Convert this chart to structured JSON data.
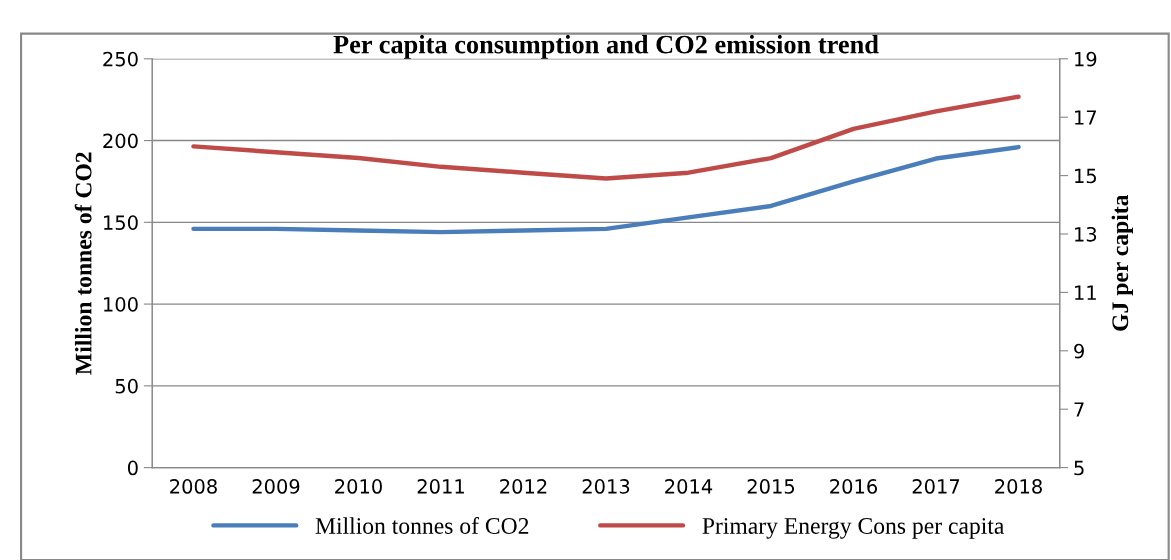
{
  "chart_data": {
    "type": "line",
    "title": "Per capita consumption and CO2 emission trend",
    "ylabel": "Million tonnes of CO2",
    "y2label": "GJ per capita",
    "categories": [
      "2008",
      "2009",
      "2010",
      "2011",
      "2012",
      "2013",
      "2014",
      "2015",
      "2016",
      "2017",
      "2018"
    ],
    "series": [
      {
        "name": "Million tonnes of CO2",
        "color": "#4a7ebb",
        "values": [
          146,
          146,
          145,
          144,
          145,
          146,
          153,
          160,
          175,
          189,
          196
        ]
      },
      {
        "name": "Primary Energy Cons per capita",
        "color": "#be4b48",
        "axis": "y2",
        "values": [
          16.0,
          15.8,
          15.6,
          15.3,
          15.1,
          14.9,
          15.1,
          15.6,
          16.6,
          17.2,
          17.7
        ]
      }
    ],
    "ylim": [
      0,
      250
    ],
    "yticks": [
      0,
      50,
      100,
      150,
      200,
      250
    ],
    "y2lim": [
      5,
      19
    ],
    "y2ticks": [
      5,
      7,
      9,
      11,
      13,
      15,
      17,
      19
    ],
    "grid": "y",
    "legend": "bottom",
    "marker": "none",
    "line_style": "solid"
  }
}
